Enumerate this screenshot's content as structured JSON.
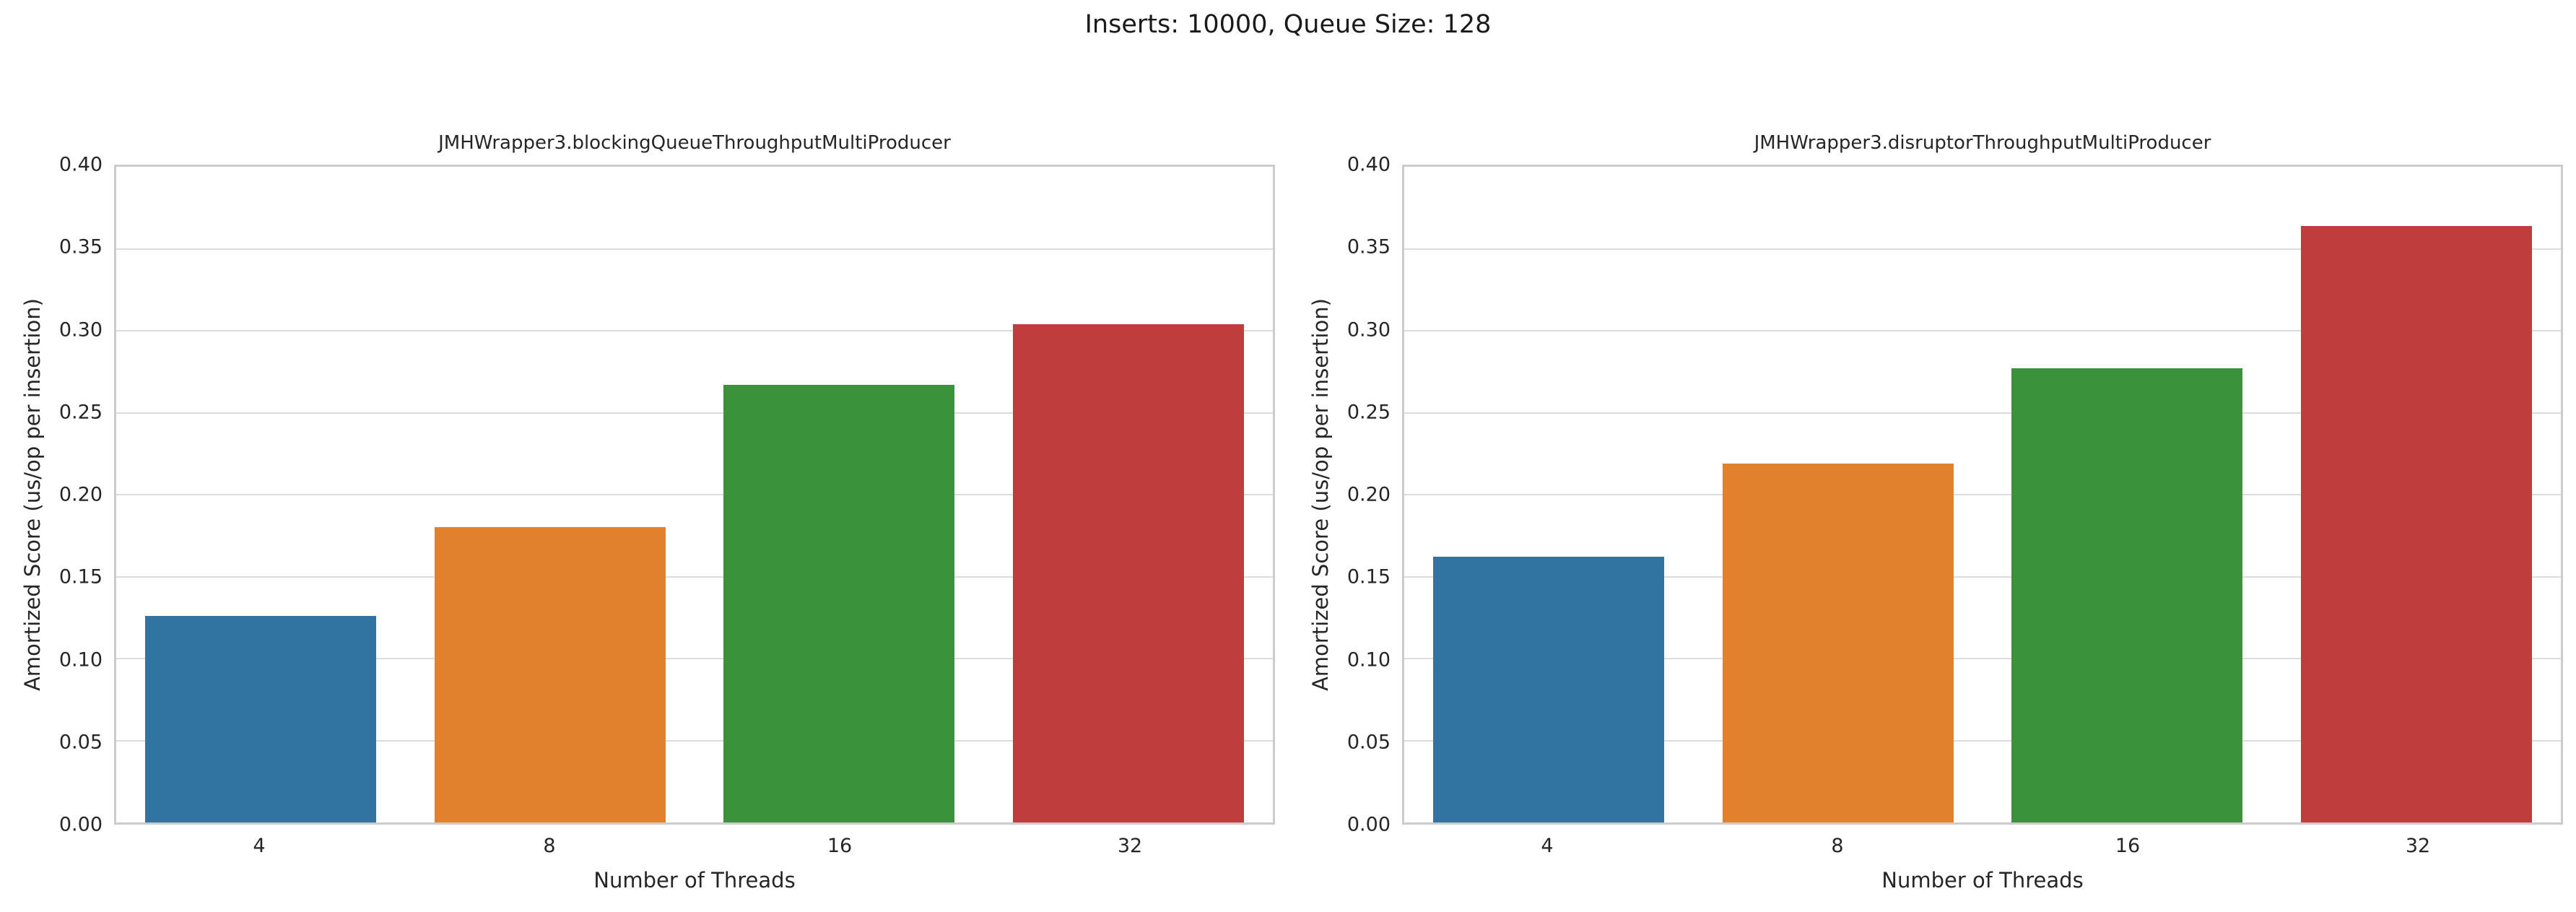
{
  "figure": {
    "suptitle": "Inserts: 10000, Queue Size: 128"
  },
  "chart_data": [
    {
      "type": "bar",
      "title": "JMHWrapper3.blockingQueueThroughputMultiProducer",
      "categories": [
        "4",
        "8",
        "16",
        "32"
      ],
      "values": [
        0.126,
        0.18,
        0.267,
        0.304
      ],
      "xlabel": "Number of Threads",
      "ylabel": "Amortized Score (us/op per insertion)",
      "ylim": [
        0.0,
        0.4
      ],
      "ytick_step": 0.05,
      "ytick_format_decimals": 2,
      "grid": true,
      "legend": false,
      "bar_colors": [
        "#3274a1",
        "#e1812c",
        "#3a923a",
        "#c03d3e"
      ]
    },
    {
      "type": "bar",
      "title": "JMHWrapper3.disruptorThroughputMultiProducer",
      "categories": [
        "4",
        "8",
        "16",
        "32"
      ],
      "values": [
        0.162,
        0.219,
        0.277,
        0.364
      ],
      "xlabel": "Number of Threads",
      "ylabel": "Amortized Score (us/op per insertion)",
      "ylim": [
        0.0,
        0.4
      ],
      "ytick_step": 0.05,
      "ytick_format_decimals": 2,
      "grid": true,
      "legend": false,
      "bar_colors": [
        "#3274a1",
        "#e1812c",
        "#3a923a",
        "#c03d3e"
      ]
    }
  ],
  "style": {
    "grid_color": "#dcdcdc",
    "spine_color": "#cccccc",
    "text_color": "#262626",
    "background_color": "#ffffff"
  }
}
